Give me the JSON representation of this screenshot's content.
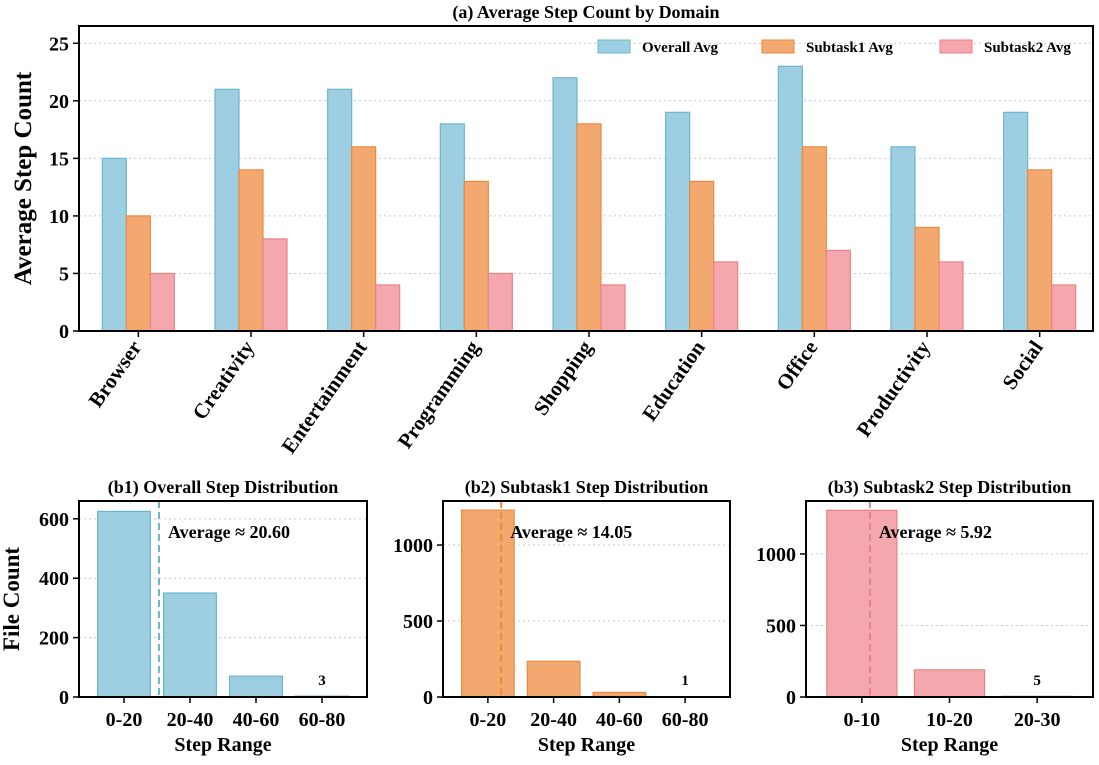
{
  "colors": {
    "overall_fill": "#9dcee1",
    "overall_stroke": "#6bb6cf",
    "subtask1_fill": "#f2a86f",
    "subtask1_stroke": "#ea8a3f",
    "subtask2_fill": "#f4a7ad",
    "subtask2_stroke": "#ec8088",
    "overall_text": "#6cb8cc",
    "subtask1_text": "#ec8a3a",
    "subtask2_text": "#ec7f88"
  },
  "chart_data": [
    {
      "id": "a",
      "type": "bar",
      "title": "(a) Average Step Count by Domain",
      "ylabel": "Average Step Count",
      "xlabel": "",
      "categories": [
        "Browser",
        "Creativity",
        "Entertainment",
        "Programming",
        "Shopping",
        "Education",
        "Office",
        "Productivity",
        "Social"
      ],
      "series": [
        {
          "name": "Overall Avg",
          "values": [
            15,
            21,
            21,
            18,
            22,
            19,
            23,
            16,
            19
          ]
        },
        {
          "name": "Subtask1 Avg",
          "values": [
            10,
            14,
            16,
            13,
            18,
            13,
            16,
            9,
            14
          ]
        },
        {
          "name": "Subtask2 Avg",
          "values": [
            5,
            8,
            4,
            5,
            4,
            6,
            7,
            6,
            4
          ]
        }
      ],
      "ylim": [
        0,
        26.5
      ],
      "yticks": [
        "0",
        "5",
        "10",
        "15",
        "20",
        "25"
      ],
      "legend": "top-right",
      "grid": "y"
    },
    {
      "id": "b1",
      "type": "bar",
      "title": "(b1) Overall Step Distribution",
      "xlabel": "Step Range",
      "ylabel": "File Count",
      "categories": [
        "0-20",
        "20-40",
        "40-60",
        "60-80"
      ],
      "values": [
        625,
        350,
        70,
        3
      ],
      "ylim": [
        0,
        660
      ],
      "yticks": [
        "0",
        "200",
        "400",
        "600"
      ],
      "average": 20.6,
      "average_label": "Average ≈ 20.60",
      "annotations": [
        {
          "category": "60-80",
          "text": "3"
        }
      ],
      "grid": "y"
    },
    {
      "id": "b2",
      "type": "bar",
      "title": "(b2) Subtask1 Step Distribution",
      "xlabel": "Step Range",
      "ylabel": "",
      "categories": [
        "0-20",
        "20-40",
        "40-60",
        "60-80"
      ],
      "values": [
        1230,
        235,
        30,
        1
      ],
      "ylim": [
        0,
        1290
      ],
      "yticks": [
        "0",
        "500",
        "1000"
      ],
      "average": 14.05,
      "average_label": "Average ≈ 14.05",
      "annotations": [
        {
          "category": "60-80",
          "text": "1"
        }
      ],
      "grid": "y"
    },
    {
      "id": "b3",
      "type": "bar",
      "title": "(b3) Subtask2 Step Distribution",
      "xlabel": "Step Range",
      "ylabel": "",
      "categories": [
        "0-10",
        "10-20",
        "20-30"
      ],
      "values": [
        1305,
        190,
        5
      ],
      "ylim": [
        0,
        1370
      ],
      "yticks": [
        "0",
        "500",
        "1000"
      ],
      "average": 5.92,
      "average_label": "Average ≈ 5.92",
      "annotations": [
        {
          "category": "20-30",
          "text": "5"
        }
      ],
      "grid": "y"
    }
  ]
}
